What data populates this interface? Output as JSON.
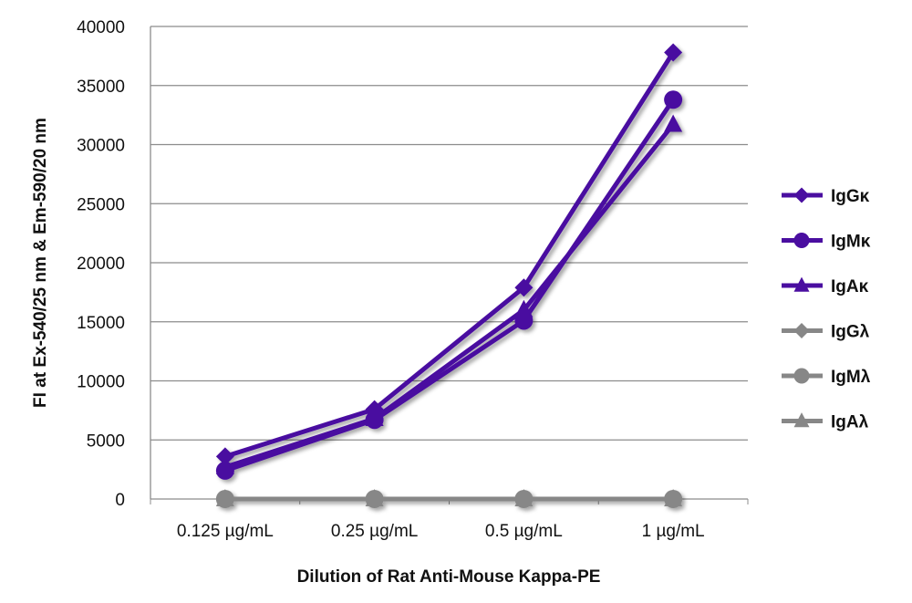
{
  "chart_data": {
    "type": "line",
    "title": "",
    "xlabel": "Dilution of Rat Anti-Mouse Kappa-PE",
    "ylabel": "FI at Ex-540/25 nm & Em-590/20 nm",
    "categories": [
      "0.125 µg/mL",
      "0.25 µg/mL",
      "0.5 µg/mL",
      "1 µg/mL"
    ],
    "ylim": [
      0,
      40000
    ],
    "yticks": [
      0,
      5000,
      10000,
      15000,
      20000,
      25000,
      30000,
      35000,
      40000
    ],
    "grid": true,
    "legend": "right",
    "series": [
      {
        "name": "IgGκ",
        "marker": "diamond",
        "color": "#4a0ea0",
        "values": [
          3600,
          7600,
          17900,
          37800
        ]
      },
      {
        "name": "IgMκ",
        "marker": "circle",
        "color": "#4a0ea0",
        "values": [
          2400,
          6700,
          15100,
          33800
        ]
      },
      {
        "name": "IgAκ",
        "marker": "triangle",
        "color": "#4a0ea0",
        "values": [
          2700,
          6800,
          16000,
          31700
        ]
      },
      {
        "name": "IgGλ",
        "marker": "diamond",
        "color": "#878787",
        "values": [
          0,
          0,
          0,
          0
        ]
      },
      {
        "name": "IgMλ",
        "marker": "circle",
        "color": "#878787",
        "values": [
          0,
          0,
          0,
          0
        ]
      },
      {
        "name": "IgAλ",
        "marker": "triangle",
        "color": "#878787",
        "values": [
          0,
          0,
          0,
          0
        ]
      }
    ]
  }
}
